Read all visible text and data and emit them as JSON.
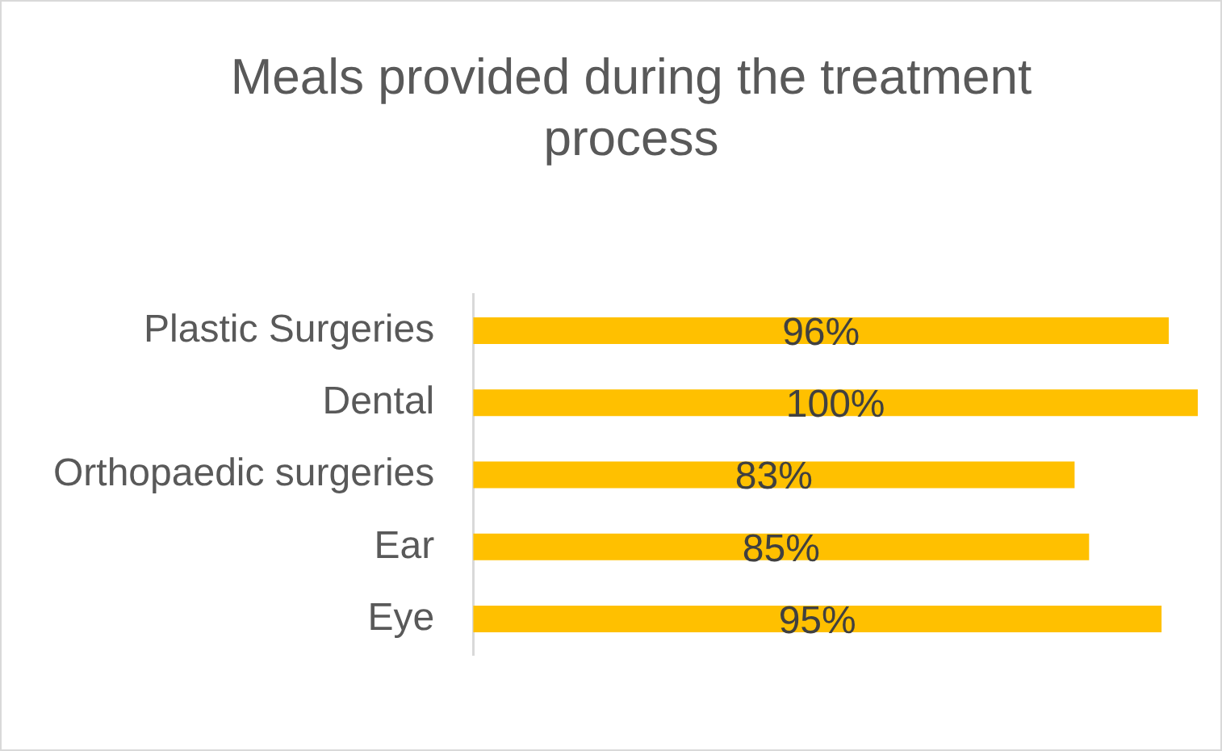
{
  "chart_data": {
    "type": "bar",
    "orientation": "horizontal",
    "title": "Meals provided during the treatment process",
    "categories": [
      "Plastic Surgeries",
      "Dental",
      "Orthopaedic surgeries",
      "Ear",
      "Eye"
    ],
    "values": [
      96,
      100,
      83,
      85,
      95
    ],
    "value_labels": [
      "96%",
      "100%",
      "83%",
      "85%",
      "95%"
    ],
    "color": "#ffc000"
  }
}
